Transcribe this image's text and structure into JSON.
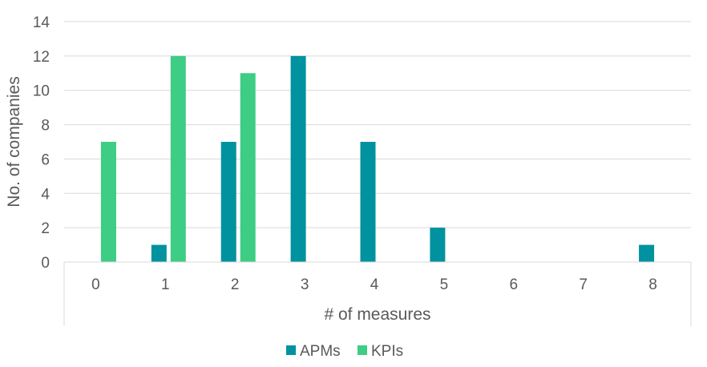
{
  "chart_data": {
    "type": "bar",
    "title": "",
    "xlabel": "# of measures",
    "ylabel": "No. of companies",
    "categories": [
      "0",
      "1",
      "2",
      "3",
      "4",
      "5",
      "6",
      "7",
      "8"
    ],
    "series": [
      {
        "name": "APMs",
        "color": "#00929F",
        "values": [
          0,
          1,
          7,
          12,
          7,
          2,
          0,
          0,
          1
        ]
      },
      {
        "name": "KPIs",
        "color": "#3DCD84",
        "values": [
          7,
          12,
          11,
          0,
          0,
          0,
          0,
          0,
          0
        ]
      }
    ],
    "ylim": [
      0,
      14
    ],
    "yticks": [
      "0",
      "2",
      "4",
      "6",
      "8",
      "10",
      "12",
      "14"
    ],
    "grid": true,
    "legend_position": "bottom"
  }
}
